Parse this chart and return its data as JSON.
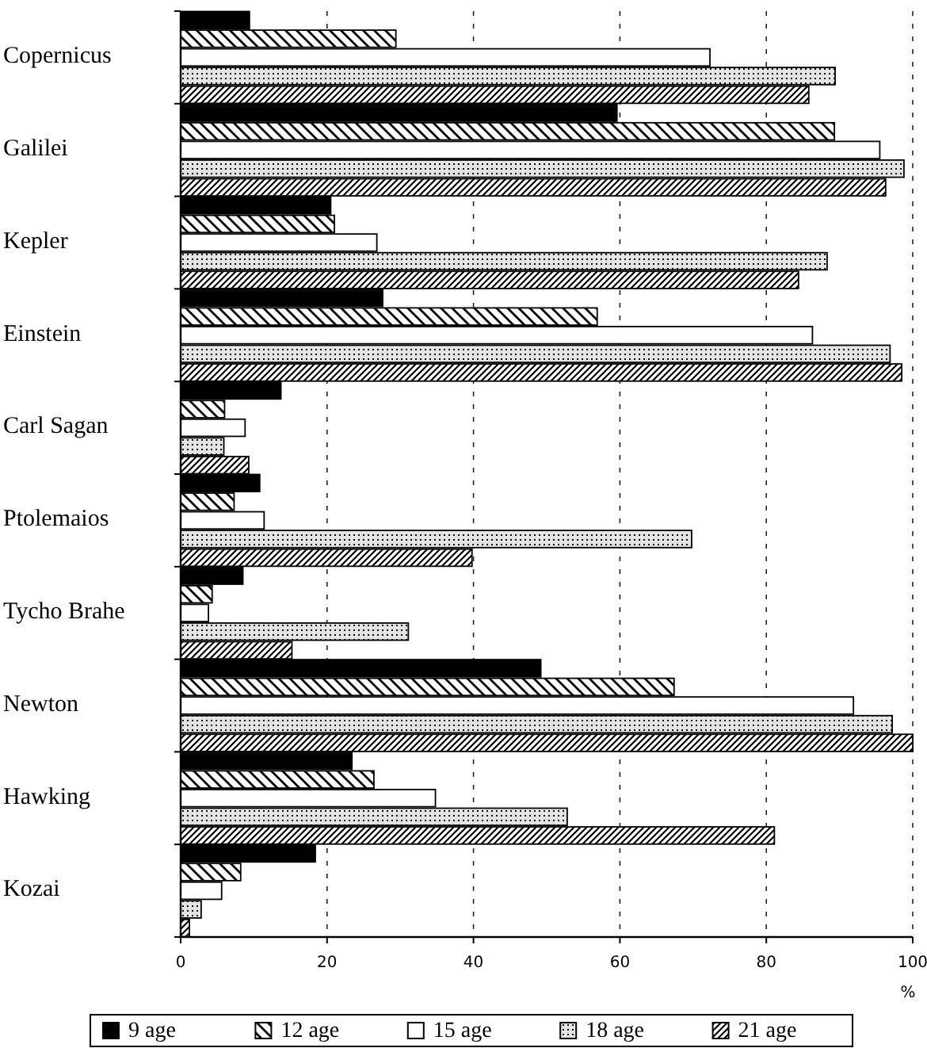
{
  "chart_data": {
    "type": "bar",
    "orientation": "horizontal",
    "categories": [
      "Copernicus",
      "Galilei",
      "Kepler",
      "Einstein",
      "Carl Sagan",
      "Ptolemaios",
      "Tycho Brahe",
      "Newton",
      "Hawking",
      "Kozai"
    ],
    "series": [
      {
        "name": "9 age",
        "color": "#000000",
        "values": [
          9.4,
          59.6,
          20.5,
          27.6,
          13.7,
          10.8,
          8.5,
          49.2,
          23.4,
          18.4
        ]
      },
      {
        "name": "12 age",
        "color": "#000000",
        "values": [
          29.4,
          89.3,
          21,
          56.9,
          6,
          7.3,
          4.3,
          67.4,
          26.4,
          8.2
        ]
      },
      {
        "name": "15 age",
        "color": "#ffffff",
        "values": [
          72.3,
          95.5,
          26.8,
          86.3,
          8.8,
          11.4,
          3.8,
          91.9,
          34.8,
          5.6
        ]
      },
      {
        "name": "18 age",
        "color": "#000000",
        "values": [
          89.4,
          98.8,
          88.3,
          96.9,
          5.9,
          69.8,
          31.1,
          97.2,
          52.8,
          2.8
        ]
      },
      {
        "name": "21 age",
        "color": "#000000",
        "values": [
          85.8,
          96.3,
          84.4,
          98.5,
          9.3,
          39.8,
          15.2,
          100,
          81.1,
          1.2
        ]
      }
    ],
    "xlim": [
      0,
      100
    ],
    "xticks": [
      0,
      20,
      40,
      60,
      80,
      100
    ],
    "xlabel": "%",
    "grid": "x",
    "legend": "bottom"
  }
}
